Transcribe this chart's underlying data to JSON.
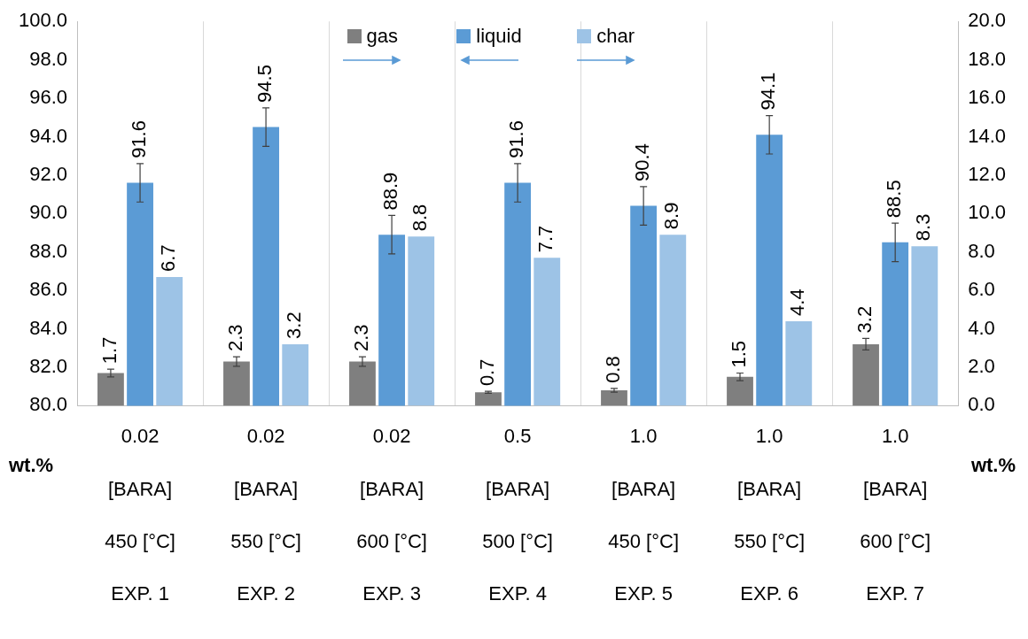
{
  "chart_data": {
    "type": "bar",
    "ylabel": "wt.%",
    "y2label": "wt.%",
    "categories": [
      "0.02\n[BARA]\n450 [°C]\nEXP. 1",
      "0.02\n[BARA]\n550 [°C]\nEXP. 2",
      "0.02\n[BARA]\n600 [°C]\nEXP. 3",
      "0.5\n[BARA]\n500 [°C]\nEXP. 4",
      "1.0\n[BARA]\n450 [°C]\nEXP. 5",
      "1.0\n[BARA]\n550 [°C]\nEXP. 6",
      "1.0\n[BARA]\n600 [°C]\nEXP. 7"
    ],
    "series": [
      {
        "name": "gas",
        "color": "#7f7f7f",
        "axis": "y2",
        "values": [
          1.7,
          2.3,
          2.3,
          0.7,
          0.8,
          1.5,
          3.2
        ],
        "errors": [
          0.2,
          0.25,
          0.25,
          0.05,
          0.1,
          0.2,
          0.3
        ]
      },
      {
        "name": "liquid",
        "color": "#5b9bd5",
        "values": [
          91.6,
          94.5,
          88.9,
          91.6,
          90.4,
          94.1,
          88.5
        ],
        "errors": [
          1.0,
          1.0,
          1.0,
          1.0,
          1.0,
          1.0,
          1.0
        ]
      },
      {
        "name": "char",
        "color": "#9dc3e6",
        "axis": "y2",
        "values": [
          6.7,
          3.2,
          8.8,
          7.7,
          8.9,
          4.4,
          8.3
        ]
      }
    ],
    "ylim": [
      80,
      100
    ],
    "yticks": [
      {
        "value": 80,
        "label": "80.0"
      },
      {
        "value": 82,
        "label": "82.0"
      },
      {
        "value": 84,
        "label": "84.0"
      },
      {
        "value": 86,
        "label": "86.0"
      },
      {
        "value": 88,
        "label": "88.0"
      },
      {
        "value": 90,
        "label": "90.0"
      },
      {
        "value": 92,
        "label": "92.0"
      },
      {
        "value": 94,
        "label": "94.0"
      },
      {
        "value": 96,
        "label": "96.0"
      },
      {
        "value": 98,
        "label": "98.0"
      },
      {
        "value": 100,
        "label": "100.0"
      }
    ],
    "y2lim": [
      0,
      20
    ],
    "y2ticks": [
      {
        "value": 0,
        "label": "0.0"
      },
      {
        "value": 2,
        "label": "2.0"
      },
      {
        "value": 4,
        "label": "4.0"
      },
      {
        "value": 6,
        "label": "6.0"
      },
      {
        "value": 8,
        "label": "8.0"
      },
      {
        "value": 10,
        "label": "10.0"
      },
      {
        "value": 12,
        "label": "12.0"
      },
      {
        "value": 14,
        "label": "14.0"
      },
      {
        "value": 16,
        "label": "16.0"
      },
      {
        "value": 18,
        "label": "18.0"
      },
      {
        "value": 20,
        "label": "20.0"
      }
    ],
    "grid": "x",
    "legend": "top",
    "data_labels": true
  }
}
